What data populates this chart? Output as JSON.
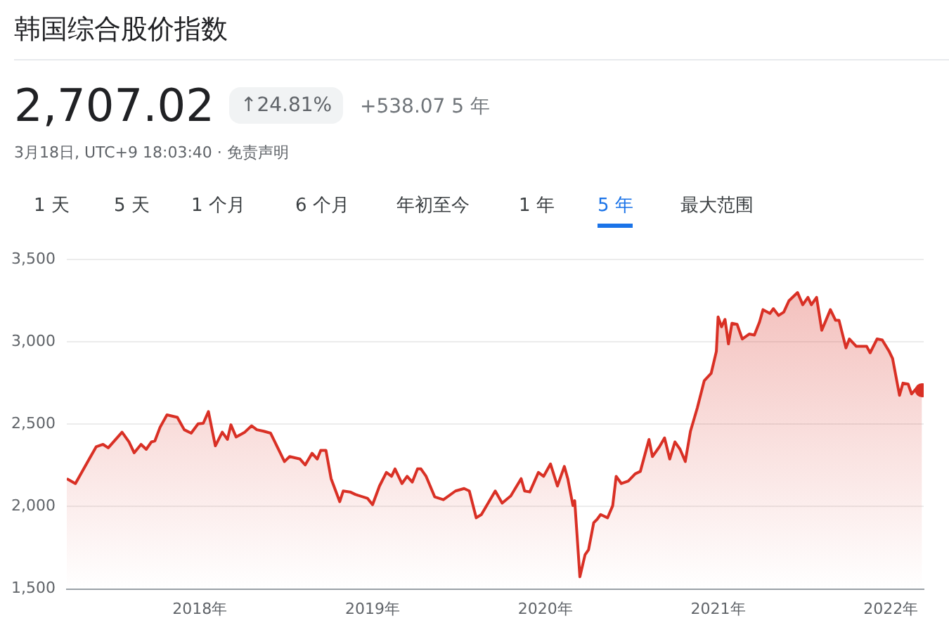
{
  "chart_data": {
    "type": "area",
    "title": "韩国综合股价指数",
    "annotations": [
      "2,707.02",
      "↑24.81%",
      "+538.07 5 年",
      "3月18日, UTC+9 18:03:40 · 免责声明",
      "1 天",
      "5 天",
      "1 个月",
      "6 个月",
      "年初至今",
      "1 年",
      "5 年",
      "最大范围"
    ],
    "x": [
      2017.23,
      2017.28,
      2017.36,
      2017.4,
      2017.44,
      2017.47,
      2017.55,
      2017.59,
      2017.62,
      2017.66,
      2017.69,
      2017.72,
      2017.74,
      2017.77,
      2017.81,
      2017.87,
      2017.91,
      2017.95,
      2017.99,
      2018.02,
      2018.05,
      2018.09,
      2018.13,
      2018.16,
      2018.18,
      2018.21,
      2018.26,
      2018.3,
      2018.33,
      2018.37,
      2018.41,
      2018.49,
      2018.52,
      2018.58,
      2018.61,
      2018.65,
      2018.68,
      2018.7,
      2018.73,
      2018.76,
      2018.81,
      2018.83,
      2018.87,
      2018.9,
      2018.97,
      2019.0,
      2019.04,
      2019.08,
      2019.11,
      2019.13,
      2019.17,
      2019.2,
      2019.23,
      2019.26,
      2019.28,
      2019.31,
      2019.36,
      2019.41,
      2019.48,
      2019.53,
      2019.56,
      2019.6,
      2019.63,
      2019.71,
      2019.75,
      2019.8,
      2019.86,
      2019.88,
      2019.91,
      2019.96,
      2019.99,
      2020.03,
      2020.07,
      2020.11,
      2020.13,
      2020.16,
      2020.17,
      2020.2,
      2020.23,
      2020.25,
      2020.28,
      2020.3,
      2020.32,
      2020.36,
      2020.39,
      2020.41,
      2020.44,
      2020.48,
      2020.52,
      2020.55,
      2020.6,
      2020.62,
      2020.66,
      2020.69,
      2020.72,
      2020.75,
      2020.78,
      2020.81,
      2020.84,
      2020.88,
      2020.92,
      2020.96,
      2020.99,
      2021.0,
      2021.02,
      2021.04,
      2021.06,
      2021.08,
      2021.11,
      2021.14,
      2021.18,
      2021.21,
      2021.24,
      2021.26,
      2021.3,
      2021.32,
      2021.35,
      2021.38,
      2021.41,
      2021.46,
      2021.49,
      2021.52,
      2021.54,
      2021.57,
      2021.6,
      2021.65,
      2021.68,
      2021.7,
      2021.74,
      2021.76,
      2021.8,
      2021.86,
      2021.88,
      2021.92,
      2021.95,
      2021.99,
      2022.01,
      2022.05,
      2022.07,
      2022.1,
      2022.12,
      2022.15,
      2022.18
    ],
    "series": [
      {
        "color": "#d93025",
        "values": [
          2170,
          2140,
          2289,
          2363,
          2378,
          2357,
          2452,
          2393,
          2327,
          2378,
          2348,
          2393,
          2399,
          2482,
          2557,
          2542,
          2467,
          2446,
          2503,
          2506,
          2577,
          2369,
          2452,
          2408,
          2497,
          2423,
          2452,
          2491,
          2467,
          2458,
          2446,
          2274,
          2304,
          2289,
          2253,
          2324,
          2289,
          2342,
          2342,
          2170,
          2030,
          2095,
          2089,
          2074,
          2051,
          2012,
          2125,
          2208,
          2184,
          2229,
          2140,
          2184,
          2149,
          2229,
          2229,
          2184,
          2059,
          2042,
          2095,
          2110,
          2095,
          1932,
          1952,
          2095,
          2021,
          2065,
          2170,
          2095,
          2089,
          2208,
          2184,
          2259,
          2125,
          2244,
          2170,
          2006,
          2036,
          1574,
          1708,
          1738,
          1902,
          1923,
          1952,
          1932,
          2006,
          2184,
          2140,
          2155,
          2199,
          2214,
          2408,
          2304,
          2363,
          2417,
          2289,
          2393,
          2348,
          2274,
          2458,
          2601,
          2765,
          2810,
          2943,
          3152,
          3092,
          3137,
          2988,
          3113,
          3107,
          3018,
          3048,
          3042,
          3122,
          3196,
          3173,
          3202,
          3161,
          3181,
          3250,
          3300,
          3226,
          3271,
          3226,
          3271,
          3071,
          3196,
          3131,
          3131,
          2964,
          3018,
          2973,
          2973,
          2934,
          3018,
          3012,
          2943,
          2899,
          2676,
          2750,
          2744,
          2684,
          2720,
          2707
        ]
      }
    ],
    "xlim": [
      2017.23,
      2022.19
    ],
    "xticks": [
      {
        "value": 2018,
        "label": "2018年"
      },
      {
        "value": 2019,
        "label": "2019年"
      },
      {
        "value": 2020,
        "label": "2020年"
      },
      {
        "value": 2021,
        "label": "2021年"
      },
      {
        "value": 2022,
        "label": "2022年"
      }
    ],
    "ylim": [
      1500,
      3500
    ],
    "yticks": [
      {
        "value": 1500,
        "label": "1,500"
      },
      {
        "value": 2000,
        "label": "2,000"
      },
      {
        "value": 2500,
        "label": "2,500"
      },
      {
        "value": 3000,
        "label": "3,000"
      },
      {
        "value": 3500,
        "label": "3,500"
      }
    ],
    "grid": "y",
    "legend": false
  }
}
